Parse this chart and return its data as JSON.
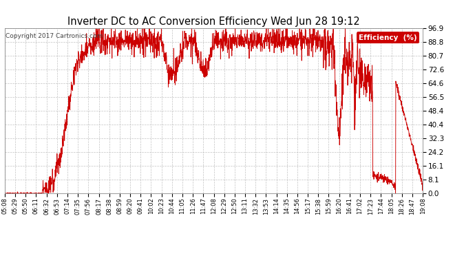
{
  "title": "Inverter DC to AC Conversion Efficiency Wed Jun 28 19:12",
  "copyright": "Copyright 2017 Cartronics.com",
  "legend_label": "Efficiency  (%)",
  "line_color": "#cc0000",
  "background_color": "#ffffff",
  "plot_bg_color": "#ffffff",
  "grid_color": "#bbbbbb",
  "ylim": [
    0.0,
    96.9
  ],
  "yticks": [
    0.0,
    8.1,
    16.1,
    24.2,
    32.3,
    40.4,
    48.4,
    56.5,
    64.6,
    72.6,
    80.7,
    88.8,
    96.9
  ],
  "xtick_labels": [
    "05:08",
    "05:29",
    "05:50",
    "06:11",
    "06:32",
    "06:53",
    "07:14",
    "07:35",
    "07:56",
    "08:17",
    "08:38",
    "08:59",
    "09:20",
    "09:41",
    "10:02",
    "10:23",
    "10:44",
    "11:05",
    "11:26",
    "11:47",
    "12:08",
    "12:29",
    "12:50",
    "13:11",
    "13:32",
    "13:53",
    "14:14",
    "14:35",
    "14:56",
    "15:17",
    "15:38",
    "15:59",
    "16:20",
    "16:41",
    "17:02",
    "17:23",
    "17:44",
    "18:05",
    "18:26",
    "18:47",
    "19:08"
  ],
  "n_points": 2000
}
